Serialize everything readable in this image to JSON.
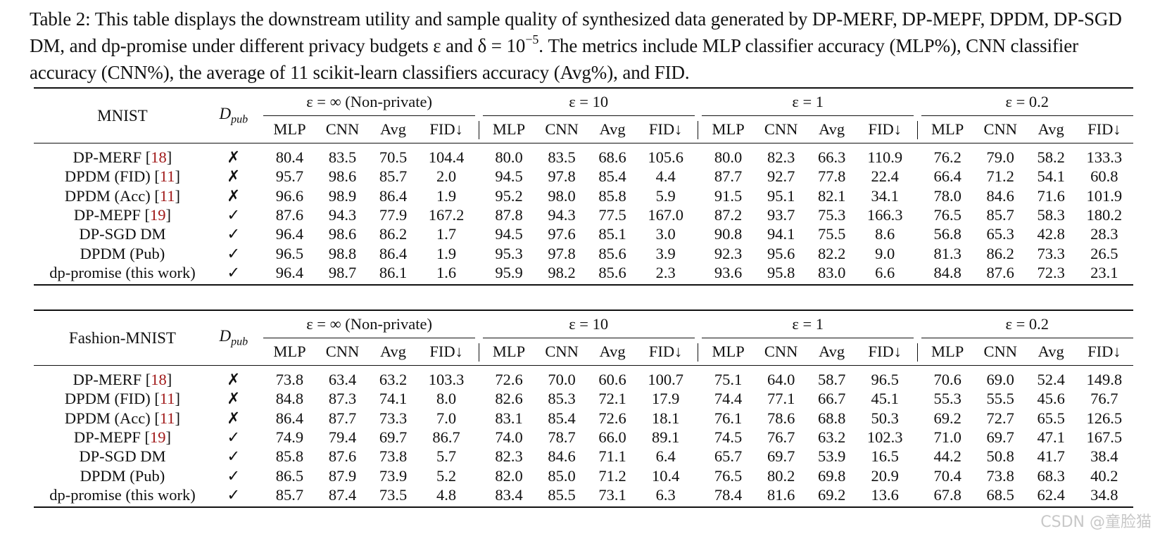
{
  "caption": {
    "part1": "Table 2:  This table displays the downstream utility and sample quality of synthesized data generated by DP-MERF, DP-MEPF, DPDM, DP-SGD DM, and dp-promise under different privacy budgets ε and δ = 10",
    "sup": "−5",
    "part2": ". The metrics include MLP classifier accuracy (MLP%), CNN classifier accuracy (CNN%), the average of 11 scikit-learn classifiers accuracy (Avg%), and FID."
  },
  "header": {
    "dpub_main": "D",
    "dpub_sub": "pub",
    "eps_groups": [
      "ε = ∞ (Non-private)",
      "ε = 10",
      "ε = 1",
      "ε = 0.2"
    ],
    "metrics": [
      "MLP",
      "CNN",
      "Avg",
      "FID↓"
    ]
  },
  "tables": [
    {
      "dataset": "MNIST",
      "rows": [
        {
          "method": "DP-MERF",
          "ref": "18",
          "dpub": "✗",
          "values": [
            "80.4",
            "83.5",
            "70.5",
            "104.4",
            "80.0",
            "83.5",
            "68.6",
            "105.6",
            "80.0",
            "82.3",
            "66.3",
            "110.9",
            "76.2",
            "79.0",
            "58.2",
            "133.3"
          ],
          "bold": []
        },
        {
          "method": "DPDM (FID)",
          "ref": "11",
          "dpub": "✗",
          "values": [
            "95.7",
            "98.6",
            "85.7",
            "2.0",
            "94.5",
            "97.8",
            "85.4",
            "4.4",
            "87.7",
            "92.7",
            "77.8",
            "22.4",
            "66.4",
            "71.2",
            "54.1",
            "60.8"
          ],
          "bold": []
        },
        {
          "method": "DPDM (Acc)",
          "ref": "11",
          "dpub": "✗",
          "values": [
            "96.6",
            "98.9",
            "86.4",
            "1.9",
            "95.2",
            "98.0",
            "85.8",
            "5.9",
            "91.5",
            "95.1",
            "82.1",
            "34.1",
            "78.0",
            "84.6",
            "71.6",
            "101.9"
          ],
          "bold": [
            0,
            1,
            2,
            6
          ]
        },
        {
          "method": "DP-MEPF",
          "ref": "19",
          "dpub": "✓",
          "values": [
            "87.6",
            "94.3",
            "77.9",
            "167.2",
            "87.8",
            "94.3",
            "77.5",
            "167.0",
            "87.2",
            "93.7",
            "75.3",
            "166.3",
            "76.5",
            "85.7",
            "58.3",
            "180.2"
          ],
          "bold": []
        },
        {
          "method": "DP-SGD DM",
          "ref": "",
          "dpub": "✓",
          "values": [
            "96.4",
            "98.6",
            "86.2",
            "1.7",
            "94.5",
            "97.6",
            "85.1",
            "3.0",
            "90.8",
            "94.1",
            "75.5",
            "8.6",
            "56.8",
            "65.3",
            "42.8",
            "28.3"
          ],
          "bold": []
        },
        {
          "method": "DPDM (Pub)",
          "ref": "",
          "dpub": "✓",
          "values": [
            "96.5",
            "98.8",
            "86.4",
            "1.9",
            "95.3",
            "97.8",
            "85.6",
            "3.9",
            "92.3",
            "95.6",
            "82.2",
            "9.0",
            "81.3",
            "86.2",
            "73.3",
            "26.5"
          ],
          "bold": [
            2,
            14
          ]
        },
        {
          "method": "dp-promise (this work)",
          "ref": "",
          "dpub": "✓",
          "values": [
            "96.4",
            "98.7",
            "86.1",
            "1.6",
            "95.9",
            "98.2",
            "85.6",
            "2.3",
            "93.6",
            "95.8",
            "83.0",
            "6.6",
            "84.8",
            "87.6",
            "72.3",
            "23.1"
          ],
          "bold": [
            3,
            4,
            5,
            7,
            8,
            9,
            10,
            11,
            12,
            13,
            15
          ]
        }
      ]
    },
    {
      "dataset": "Fashion-MNIST",
      "rows": [
        {
          "method": "DP-MERF",
          "ref": "18",
          "dpub": "✗",
          "values": [
            "73.8",
            "63.4",
            "63.2",
            "103.3",
            "72.6",
            "70.0",
            "60.6",
            "100.7",
            "75.1",
            "64.0",
            "58.7",
            "96.5",
            "70.6",
            "69.0",
            "52.4",
            "149.8"
          ],
          "bold": []
        },
        {
          "method": "DPDM (FID)",
          "ref": "11",
          "dpub": "✗",
          "values": [
            "84.8",
            "87.3",
            "74.1",
            "8.0",
            "82.6",
            "85.3",
            "72.1",
            "17.9",
            "74.4",
            "77.1",
            "66.7",
            "45.1",
            "55.3",
            "55.5",
            "45.6",
            "76.7"
          ],
          "bold": [
            2
          ]
        },
        {
          "method": "DPDM (Acc)",
          "ref": "11",
          "dpub": "✗",
          "values": [
            "86.4",
            "87.7",
            "73.3",
            "7.0",
            "83.1",
            "85.4",
            "72.6",
            "18.1",
            "76.1",
            "78.6",
            "68.8",
            "50.3",
            "69.2",
            "72.7",
            "65.5",
            "126.5"
          ],
          "bold": []
        },
        {
          "method": "DP-MEPF",
          "ref": "19",
          "dpub": "✓",
          "values": [
            "74.9",
            "79.4",
            "69.7",
            "86.7",
            "74.0",
            "78.7",
            "66.0",
            "89.1",
            "74.5",
            "76.7",
            "63.2",
            "102.3",
            "71.0",
            "69.7",
            "47.1",
            "167.5"
          ],
          "bold": [
            12
          ]
        },
        {
          "method": "DP-SGD DM",
          "ref": "",
          "dpub": "✓",
          "values": [
            "85.8",
            "87.6",
            "73.8",
            "5.7",
            "82.3",
            "84.6",
            "71.1",
            "6.4",
            "65.7",
            "69.7",
            "53.9",
            "16.5",
            "44.2",
            "50.8",
            "41.7",
            "38.4"
          ],
          "bold": []
        },
        {
          "method": "DPDM (Pub)",
          "ref": "",
          "dpub": "✓",
          "values": [
            "86.5",
            "87.9",
            "73.9",
            "5.2",
            "82.0",
            "85.0",
            "71.2",
            "10.4",
            "76.5",
            "80.2",
            "69.8",
            "20.9",
            "70.4",
            "73.8",
            "68.3",
            "40.2"
          ],
          "bold": [
            0,
            1,
            10,
            13,
            14
          ]
        },
        {
          "method": "dp-promise (this work)",
          "ref": "",
          "dpub": "✓",
          "values": [
            "85.7",
            "87.4",
            "73.5",
            "4.8",
            "83.4",
            "85.5",
            "73.1",
            "6.3",
            "78.4",
            "81.6",
            "69.2",
            "13.6",
            "67.8",
            "68.5",
            "62.4",
            "34.8"
          ],
          "bold": [
            3,
            4,
            5,
            6,
            7,
            8,
            9,
            11,
            15
          ]
        }
      ]
    }
  ],
  "watermark": "CSDN @童脸猫"
}
